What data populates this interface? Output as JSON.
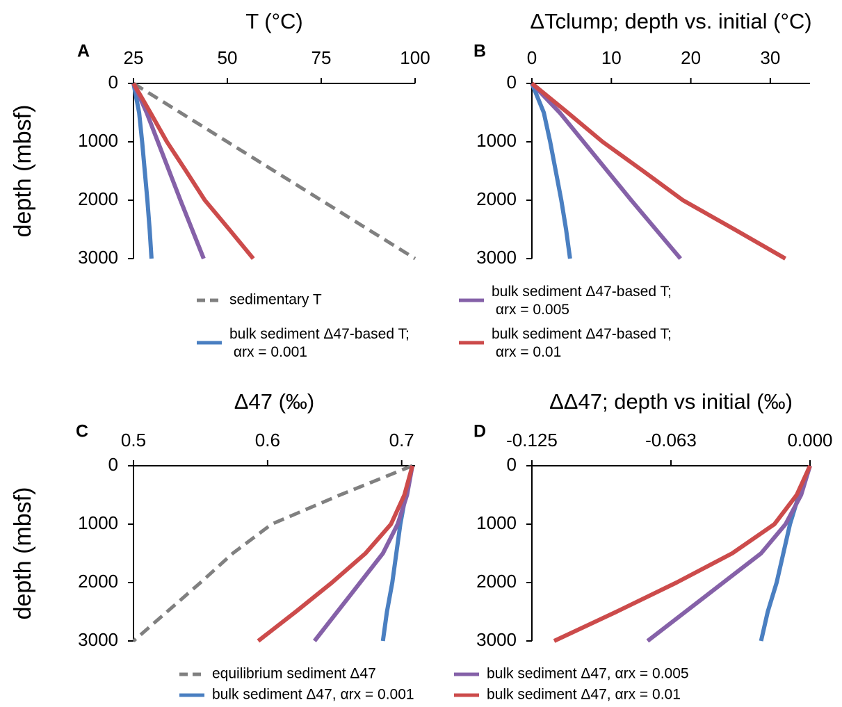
{
  "chart_data": [
    {
      "type": "line",
      "label": "A",
      "title": "T (°C)",
      "ylabel": "depth (mbsf)",
      "y": [
        0,
        500,
        1000,
        1500,
        2000,
        2500,
        3000
      ],
      "xlim": [
        25,
        100
      ],
      "xticks": [
        25,
        50,
        75,
        100
      ],
      "ylim": [
        0,
        3000
      ],
      "yticks": [
        0,
        1000,
        2000,
        3000
      ],
      "y_inverted": true,
      "series": [
        {
          "name": "sedimentary T",
          "color": "#808080",
          "dashed": true,
          "values": [
            25,
            37.5,
            50,
            62.5,
            75,
            87.5,
            100
          ]
        },
        {
          "name": "bulk sediment Δ47-based T; αrx = 0.001",
          "color": "#4a7fc1",
          "values": [
            25,
            26.5,
            27.3,
            28,
            28.7,
            29.3,
            29.8
          ]
        },
        {
          "color": "#8561a8",
          "values": [
            25,
            28.5,
            31.5,
            34.5,
            37.5,
            40.6,
            43.7
          ]
        },
        {
          "color": "#cc4b4b",
          "values": [
            25,
            29.5,
            33.9,
            39,
            44,
            50.5,
            56.9
          ]
        }
      ]
    },
    {
      "type": "line",
      "label": "B",
      "title": "ΔTclump; depth vs. initial (°C)",
      "y": [
        0,
        500,
        1000,
        1500,
        2000,
        2500,
        3000
      ],
      "xlim": [
        0,
        35
      ],
      "xticks": [
        0,
        10,
        20,
        30
      ],
      "ylim": [
        0,
        3000
      ],
      "yticks": [
        0,
        1000,
        2000,
        3000
      ],
      "y_inverted": true,
      "series": [
        {
          "color": "#4a7fc1",
          "values": [
            0,
            1.5,
            2.3,
            3,
            3.7,
            4.3,
            4.8
          ]
        },
        {
          "name": "bulk sediment Δ47-based T; αrx = 0.005",
          "color": "#8561a8",
          "values": [
            0,
            3.5,
            6.5,
            9.5,
            12.5,
            15.6,
            18.7
          ]
        },
        {
          "name": "bulk sediment Δ47-based T; αrx = 0.01",
          "color": "#cc4b4b",
          "values": [
            0,
            4.5,
            8.9,
            14,
            19,
            25.5,
            31.9
          ]
        }
      ]
    },
    {
      "type": "line",
      "label": "C",
      "title": "Δ47 (‰)",
      "ylabel": "depth (mbsf)",
      "y": [
        0,
        500,
        1000,
        1500,
        2000,
        2500,
        3000
      ],
      "xlim": [
        0.5,
        0.71
      ],
      "xticks": [
        0.5,
        0.6,
        0.7
      ],
      "ylim": [
        0,
        3000
      ],
      "yticks": [
        0,
        1000,
        2000,
        3000
      ],
      "y_inverted": true,
      "series": [
        {
          "name": "equilibrium sediment Δ47",
          "color": "#808080",
          "dashed": true,
          "values": [
            0.708,
            0.654,
            0.603,
            0.574,
            0.55,
            0.525,
            0.5
          ]
        },
        {
          "name": "bulk sediment Δ47, αrx = 0.001",
          "color": "#4a7fc1",
          "values": [
            0.708,
            0.703,
            0.699,
            0.696,
            0.693,
            0.689,
            0.686
          ]
        },
        {
          "color": "#8561a8",
          "values": [
            0.708,
            0.704,
            0.697,
            0.686,
            0.669,
            0.652,
            0.635
          ]
        },
        {
          "color": "#cc4b4b",
          "values": [
            0.708,
            0.702,
            0.692,
            0.673,
            0.648,
            0.621,
            0.593
          ]
        }
      ]
    },
    {
      "type": "line",
      "label": "D",
      "title": "ΔΔ47; depth vs initial (‰)",
      "y": [
        0,
        500,
        1000,
        1500,
        2000,
        2500,
        3000
      ],
      "xlim": [
        -0.125,
        0
      ],
      "xticks": [
        -0.125,
        {
          "value": -0.0625,
          "label": "-0.063"
        },
        {
          "value": 0,
          "label": "0.000"
        }
      ],
      "ylim": [
        0,
        3000
      ],
      "yticks": [
        0,
        1000,
        2000,
        3000
      ],
      "y_inverted": true,
      "series": [
        {
          "color": "#4a7fc1",
          "values": [
            0,
            -0.005,
            -0.009,
            -0.012,
            -0.015,
            -0.019,
            -0.022
          ]
        },
        {
          "name": "bulk sediment Δ47, αrx = 0.005",
          "color": "#8561a8",
          "values": [
            0,
            -0.004,
            -0.011,
            -0.022,
            -0.039,
            -0.056,
            -0.073
          ]
        },
        {
          "name": "bulk sediment Δ47, αrx = 0.01",
          "color": "#cc4b4b",
          "values": [
            0,
            -0.006,
            -0.016,
            -0.035,
            -0.06,
            -0.087,
            -0.115
          ]
        }
      ]
    }
  ]
}
